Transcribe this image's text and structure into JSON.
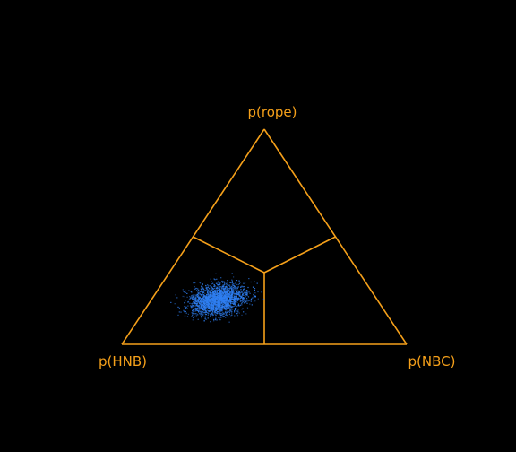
{
  "chart_data": {
    "type": "scatter",
    "subtype": "ternary-simplex",
    "vertices": {
      "top": "p(rope)",
      "left": "p(HNB)",
      "right": "p(NBC)"
    },
    "point_count": 2500,
    "point_cloud": {
      "p_HNB_mean": 0.56,
      "p_rope_mean": 0.21,
      "p_NBC_mean": 0.23,
      "p_HNB_sd": 0.055,
      "p_rope_sd": 0.035,
      "correlation": -0.55
    },
    "region_boundaries": "lines from centroid to edge midpoints",
    "colors": {
      "frame": "#f5a01a",
      "points": "#2f7ff2",
      "background": "#000000"
    }
  }
}
